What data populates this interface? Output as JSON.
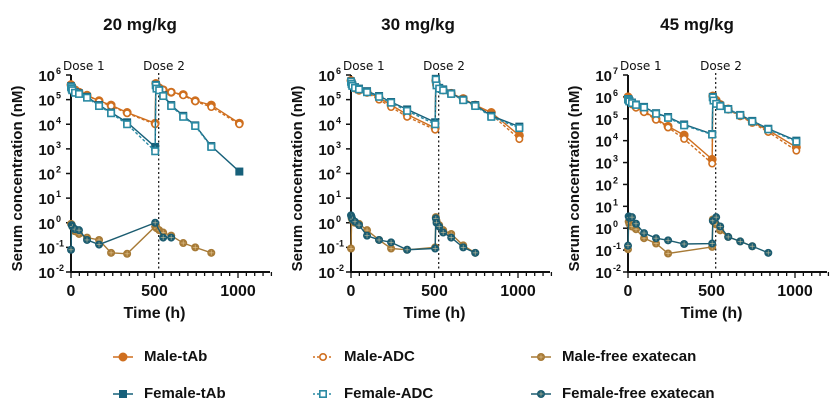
{
  "colors": {
    "male_tab": "#cf6f1f",
    "male_adc": "#cf6f1f",
    "female_tab": "#17607a",
    "female_adc": "#2a8aa3",
    "male_free": "#a77a36",
    "female_free": "#1b5c70",
    "axis": "#111111"
  },
  "chart_data": [
    {
      "type": "line",
      "title": "20 mg/kg",
      "xlabel": "Time (h)",
      "ylabel": "Serum concentration (nM)",
      "yscale": "log",
      "ylim_exp": [
        -2,
        6
      ],
      "xlim": [
        0,
        1200
      ],
      "xticks": [
        0,
        500,
        1000
      ],
      "annotations": [
        {
          "text": "Dose 1",
          "x": 0
        },
        {
          "text": "Dose 2",
          "x": 504
        }
      ],
      "dose_line_x": 525,
      "series": [
        {
          "name": "Male-tAb",
          "key": "male_tab",
          "marker": "circle-filled",
          "dash": false,
          "x": [
            0,
            4,
            8,
            24,
            48,
            96,
            168,
            240,
            336,
            504,
            508,
            512,
            528,
            552,
            600,
            672,
            744,
            840,
            1008
          ],
          "y": [
            400000,
            350000,
            300000,
            250000,
            200000,
            150000,
            90000,
            60000,
            30000,
            11000,
            450000,
            350000,
            300000,
            250000,
            200000,
            160000,
            90000,
            60000,
            11000
          ]
        },
        {
          "name": "Male-ADC",
          "key": "male_adc",
          "marker": "circle-open",
          "dash": true,
          "x": [
            0,
            4,
            8,
            24,
            48,
            96,
            168,
            240,
            336,
            504,
            508,
            512,
            528,
            552,
            600,
            672,
            744,
            840,
            1008
          ],
          "y": [
            420000,
            360000,
            300000,
            250000,
            200000,
            150000,
            85000,
            55000,
            28000,
            10000,
            450000,
            350000,
            300000,
            250000,
            200000,
            150000,
            85000,
            50000,
            10000
          ]
        },
        {
          "name": "Female-tAb",
          "key": "female_tab",
          "marker": "square-filled",
          "dash": false,
          "x": [
            0,
            4,
            8,
            24,
            48,
            96,
            168,
            240,
            336,
            504,
            508,
            512,
            528,
            552,
            600,
            672,
            744,
            840,
            1008
          ],
          "y": [
            350000,
            300000,
            250000,
            200000,
            180000,
            130000,
            60000,
            30000,
            12000,
            1200,
            400000,
            300000,
            250000,
            150000,
            60000,
            22000,
            9000,
            1300,
            120
          ]
        },
        {
          "name": "Female-ADC",
          "key": "female_adc",
          "marker": "square-open",
          "dash": true,
          "x": [
            0,
            4,
            8,
            24,
            48,
            96,
            168,
            240,
            336,
            504,
            508,
            512,
            528,
            552,
            600,
            672,
            744,
            840
          ],
          "y": [
            330000,
            280000,
            240000,
            190000,
            170000,
            120000,
            55000,
            28000,
            10000,
            800,
            380000,
            280000,
            240000,
            140000,
            55000,
            20000,
            8500,
            1200
          ]
        },
        {
          "name": "Male-free exatecan",
          "key": "male_free",
          "marker": "circle-cross",
          "dash": false,
          "x": [
            0,
            4,
            8,
            24,
            48,
            96,
            168,
            240,
            336,
            504,
            508,
            512,
            528,
            552,
            600,
            672,
            744,
            840
          ],
          "y": [
            0.9,
            0.85,
            0.7,
            0.45,
            0.35,
            0.25,
            0.2,
            0.06,
            0.055,
            0.7,
            0.8,
            0.6,
            0.5,
            0.4,
            0.3,
            0.15,
            0.1,
            0.06
          ]
        },
        {
          "name": "Female-free exatecan",
          "key": "female_free",
          "marker": "circle-cross",
          "dash": false,
          "x": [
            0,
            4,
            8,
            24,
            48,
            96,
            168,
            504,
            552,
            600
          ],
          "y": [
            0.08,
            0.8,
            0.7,
            0.55,
            0.5,
            0.2,
            0.13,
            1.0,
            0.25,
            0.25
          ]
        }
      ]
    },
    {
      "type": "line",
      "title": "30 mg/kg",
      "xlabel": "Time (h)",
      "ylabel": "Serum concentration (nM)",
      "yscale": "log",
      "ylim_exp": [
        -2,
        6
      ],
      "xlim": [
        0,
        1200
      ],
      "xticks": [
        0,
        500,
        1000
      ],
      "annotations": [
        {
          "text": "Dose 1",
          "x": 0
        },
        {
          "text": "Dose 2",
          "x": 504
        }
      ],
      "dose_line_x": 525,
      "series": [
        {
          "name": "Male-tAb",
          "key": "male_tab",
          "marker": "circle-filled",
          "dash": false,
          "x": [
            0,
            4,
            8,
            24,
            48,
            96,
            168,
            240,
            336,
            504,
            508,
            512,
            528,
            552,
            600,
            672,
            744,
            840,
            1008
          ],
          "y": [
            600000,
            500000,
            400000,
            300000,
            250000,
            200000,
            120000,
            60000,
            25000,
            7000,
            600000,
            400000,
            300000,
            250000,
            180000,
            110000,
            60000,
            30000,
            3500
          ]
        },
        {
          "name": "Male-ADC",
          "key": "male_adc",
          "marker": "circle-open",
          "dash": true,
          "x": [
            0,
            4,
            8,
            24,
            48,
            96,
            168,
            240,
            336,
            504,
            508,
            512,
            528,
            552,
            600,
            672,
            744,
            840,
            1008
          ],
          "y": [
            580000,
            480000,
            380000,
            280000,
            230000,
            190000,
            100000,
            50000,
            20000,
            6000,
            550000,
            380000,
            280000,
            240000,
            170000,
            100000,
            55000,
            25000,
            2500
          ]
        },
        {
          "name": "Female-tAb",
          "key": "female_tab",
          "marker": "square-filled",
          "dash": false,
          "x": [
            0,
            4,
            8,
            24,
            48,
            96,
            168,
            240,
            336,
            504,
            508,
            512,
            528,
            552,
            600,
            672,
            744,
            840,
            1008
          ],
          "y": [
            550000,
            450000,
            380000,
            320000,
            280000,
            220000,
            140000,
            80000,
            40000,
            12000,
            700000,
            400000,
            300000,
            260000,
            180000,
            100000,
            60000,
            22000,
            8000
          ]
        },
        {
          "name": "Female-ADC",
          "key": "female_adc",
          "marker": "square-open",
          "dash": true,
          "x": [
            0,
            4,
            8,
            24,
            48,
            96,
            168,
            240,
            336,
            504,
            508,
            512,
            528,
            552,
            600,
            672,
            744,
            840,
            1008
          ],
          "y": [
            530000,
            430000,
            360000,
            300000,
            260000,
            200000,
            130000,
            75000,
            35000,
            10000,
            650000,
            380000,
            280000,
            240000,
            170000,
            95000,
            55000,
            20000,
            7000
          ]
        },
        {
          "name": "Male-free exatecan",
          "key": "male_free",
          "marker": "circle-cross",
          "dash": false,
          "x": [
            0,
            4,
            8,
            24,
            48,
            96,
            168,
            240,
            336,
            504,
            508,
            512,
            528,
            552,
            600,
            672,
            744
          ],
          "y": [
            0.09,
            1.5,
            1.3,
            1.0,
            0.9,
            0.5,
            0.2,
            0.09,
            0.08,
            0.1,
            1.7,
            1.2,
            0.8,
            0.5,
            0.35,
            0.12,
            0.06
          ]
        },
        {
          "name": "Female-free exatecan",
          "key": "female_free",
          "marker": "circle-cross",
          "dash": false,
          "x": [
            0,
            4,
            8,
            24,
            48,
            96,
            168,
            240,
            336,
            504,
            508,
            512,
            528,
            552,
            600,
            672,
            744
          ],
          "y": [
            2.0,
            1.7,
            1.4,
            1.1,
            0.8,
            0.3,
            0.2,
            0.16,
            0.08,
            0.09,
            1.5,
            1.0,
            0.7,
            0.4,
            0.25,
            0.1,
            0.06
          ]
        }
      ]
    },
    {
      "type": "line",
      "title": "45 mg/kg",
      "xlabel": "Time (h)",
      "ylabel": "Serum concentration (nM)",
      "yscale": "log",
      "ylim_exp": [
        -2,
        7
      ],
      "xlim": [
        0,
        1200
      ],
      "xticks": [
        0,
        500,
        1000
      ],
      "annotations": [
        {
          "text": "Dose 1",
          "x": 0
        },
        {
          "text": "Dose 2",
          "x": 504
        }
      ],
      "dose_line_x": 525,
      "series": [
        {
          "name": "Male-tAb",
          "key": "male_tab",
          "marker": "circle-filled",
          "dash": false,
          "x": [
            0,
            4,
            8,
            24,
            48,
            96,
            168,
            240,
            336,
            504,
            508,
            512,
            528,
            552,
            600,
            672,
            744,
            840,
            1008
          ],
          "y": [
            1000000,
            900000,
            700000,
            500000,
            350000,
            220000,
            100000,
            45000,
            18000,
            1400,
            1100000,
            900000,
            700000,
            450000,
            280000,
            140000,
            70000,
            30000,
            5000
          ]
        },
        {
          "name": "Male-ADC",
          "key": "male_adc",
          "marker": "circle-open",
          "dash": true,
          "x": [
            0,
            4,
            8,
            24,
            48,
            96,
            168,
            240,
            336,
            504,
            508,
            512,
            528,
            552,
            600,
            672,
            744,
            840,
            1008
          ],
          "y": [
            950000,
            850000,
            650000,
            450000,
            320000,
            200000,
            90000,
            40000,
            12000,
            900,
            1000000,
            850000,
            650000,
            420000,
            260000,
            130000,
            65000,
            25000,
            3500
          ]
        },
        {
          "name": "Female-tAb",
          "key": "female_tab",
          "marker": "square-filled",
          "dash": false,
          "x": [
            0,
            4,
            8,
            24,
            48,
            96,
            168,
            240,
            336,
            504,
            508,
            512,
            528,
            552,
            600,
            672,
            744,
            840,
            1008
          ],
          "y": [
            800000,
            750000,
            650000,
            550000,
            450000,
            350000,
            180000,
            120000,
            55000,
            20000,
            1000000,
            700000,
            500000,
            400000,
            280000,
            150000,
            80000,
            35000,
            10000
          ]
        },
        {
          "name": "Female-ADC",
          "key": "female_adc",
          "marker": "square-open",
          "dash": true,
          "x": [
            0,
            4,
            8,
            24,
            48,
            96,
            168,
            240,
            336,
            504,
            508,
            512,
            528,
            552,
            600,
            672,
            744,
            840,
            1008
          ],
          "y": [
            780000,
            720000,
            620000,
            520000,
            430000,
            330000,
            170000,
            110000,
            50000,
            19000,
            950000,
            680000,
            480000,
            380000,
            270000,
            145000,
            75000,
            33000,
            9000
          ]
        },
        {
          "name": "Male-free exatecan",
          "key": "male_free",
          "marker": "circle-cross",
          "dash": false,
          "x": [
            0,
            4,
            8,
            24,
            48,
            96,
            168,
            240,
            504,
            508,
            512,
            528,
            552,
            600,
            672,
            744
          ],
          "y": [
            0.11,
            2.0,
            1.6,
            1.2,
            0.9,
            0.35,
            0.2,
            0.07,
            0.14,
            2.5,
            2.0,
            1.5,
            0.8,
            0.4,
            0.25,
            0.15
          ]
        },
        {
          "name": "Female-free exatecan",
          "key": "female_free",
          "marker": "circle-cross",
          "dash": false,
          "x": [
            0,
            4,
            8,
            24,
            48,
            96,
            168,
            240,
            336,
            504,
            508,
            528,
            552,
            600,
            672,
            744,
            840
          ],
          "y": [
            0.16,
            3.5,
            3.0,
            3.2,
            1.6,
            0.6,
            0.35,
            0.28,
            0.19,
            0.2,
            2.2,
            3.2,
            1.2,
            0.4,
            0.25,
            0.15,
            0.075
          ]
        }
      ]
    }
  ],
  "legend": {
    "items": [
      {
        "label": "Male-tAb",
        "key": "male_tab",
        "marker": "circle-filled"
      },
      {
        "label": "Male-ADC",
        "key": "male_adc",
        "marker": "circle-open"
      },
      {
        "label": "Male-free exatecan",
        "key": "male_free",
        "marker": "circle-cross"
      },
      {
        "label": "Female-tAb",
        "key": "female_tab",
        "marker": "square-filled"
      },
      {
        "label": "Female-ADC",
        "key": "female_adc",
        "marker": "square-open"
      },
      {
        "label": "Female-free exatecan",
        "key": "female_free",
        "marker": "circle-cross"
      }
    ]
  }
}
